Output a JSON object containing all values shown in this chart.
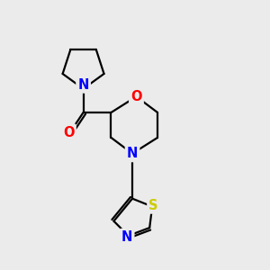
{
  "bg_color": "#ebebeb",
  "atom_colors": {
    "N": "#0000FF",
    "O": "#FF0000",
    "S": "#CCCC00",
    "C": "#000000"
  },
  "bond_color": "#000000",
  "bond_width": 1.6,
  "font_size": 10.5
}
